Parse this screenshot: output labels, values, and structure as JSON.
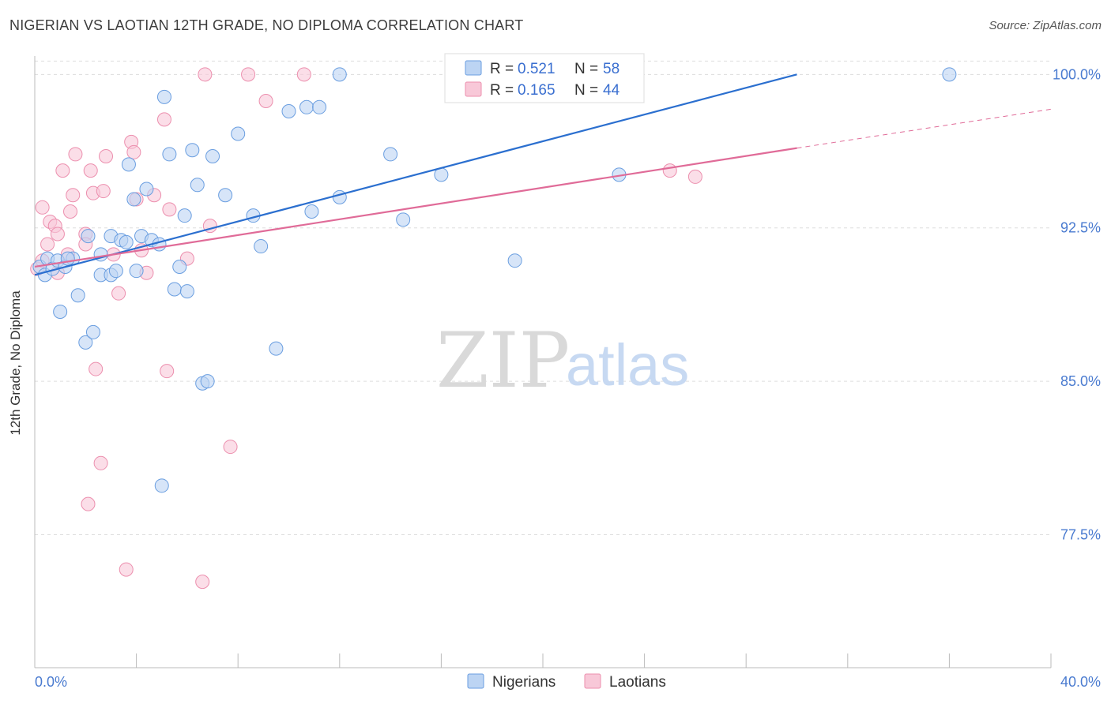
{
  "title": "NIGERIAN VS LAOTIAN 12TH GRADE, NO DIPLOMA CORRELATION CHART",
  "source": "Source: ZipAtlas.com",
  "watermark": {
    "zip": "ZIP",
    "atlas": "atlas"
  },
  "colors": {
    "nigerian_fill": "#bcd4f3",
    "nigerian_stroke": "#6a9ee0",
    "nigerian_line": "#2b6fcf",
    "laotian_fill": "#f8c8d8",
    "laotian_stroke": "#ec8fae",
    "laotian_line": "#e06b98",
    "grid": "#dddddd",
    "tick_label": "#4a7bd0"
  },
  "legend": {
    "rows": [
      {
        "r_label": "R = ",
        "r_value": "0.521",
        "n_label": "N = ",
        "n_value": "58"
      },
      {
        "r_label": "R = ",
        "r_value": "0.165",
        "n_label": "N = ",
        "n_value": "44"
      }
    ]
  },
  "chart_data": {
    "type": "scatter",
    "xlabel": "",
    "ylabel": "12th Grade, No Diploma",
    "xlim": [
      0,
      40
    ],
    "ylim": [
      71,
      100.9
    ],
    "x_tick_labels": [
      {
        "value": 0,
        "label": "0.0%"
      },
      {
        "value": 40,
        "label": "40.0%"
      }
    ],
    "y_tick_labels": [
      {
        "value": 100,
        "label": "100.0%"
      },
      {
        "value": 92.5,
        "label": "92.5%"
      },
      {
        "value": 85,
        "label": "85.0%"
      },
      {
        "value": 77.5,
        "label": "77.5%"
      }
    ],
    "legend_placement": "top-center",
    "series": [
      {
        "name": "Nigerians",
        "points": [
          [
            0.2,
            90.6
          ],
          [
            0.4,
            90.2
          ],
          [
            0.5,
            91.0
          ],
          [
            0.7,
            90.5
          ],
          [
            0.9,
            90.9
          ],
          [
            1.2,
            90.6
          ],
          [
            1.5,
            91.0
          ],
          [
            1.0,
            88.4
          ],
          [
            1.7,
            89.2
          ],
          [
            2.0,
            86.9
          ],
          [
            2.3,
            87.4
          ],
          [
            2.1,
            92.1
          ],
          [
            2.6,
            90.2
          ],
          [
            2.6,
            91.2
          ],
          [
            3.0,
            92.1
          ],
          [
            3.0,
            90.2
          ],
          [
            3.2,
            90.4
          ],
          [
            3.4,
            91.9
          ],
          [
            3.6,
            91.8
          ],
          [
            3.7,
            95.6
          ],
          [
            3.9,
            93.9
          ],
          [
            4.0,
            90.4
          ],
          [
            4.2,
            92.1
          ],
          [
            4.4,
            94.4
          ],
          [
            4.6,
            91.9
          ],
          [
            4.9,
            91.7
          ],
          [
            5.1,
            98.9
          ],
          [
            5.3,
            96.1
          ],
          [
            5.5,
            89.5
          ],
          [
            5.7,
            90.6
          ],
          [
            5.9,
            93.1
          ],
          [
            6.0,
            89.4
          ],
          [
            6.2,
            96.3
          ],
          [
            6.4,
            94.6
          ],
          [
            6.6,
            84.9
          ],
          [
            6.8,
            85.0
          ],
          [
            7.0,
            96.0
          ],
          [
            7.5,
            94.1
          ],
          [
            8.0,
            97.1
          ],
          [
            8.6,
            93.1
          ],
          [
            8.9,
            91.6
          ],
          [
            9.5,
            86.6
          ],
          [
            10.0,
            98.2
          ],
          [
            10.7,
            98.4
          ],
          [
            10.9,
            93.3
          ],
          [
            11.2,
            98.4
          ],
          [
            12.0,
            100.0
          ],
          [
            12.0,
            94.0
          ],
          [
            14.0,
            96.1
          ],
          [
            14.5,
            92.9
          ],
          [
            16.0,
            95.1
          ],
          [
            16.6,
            100.0
          ],
          [
            18.9,
            100.0
          ],
          [
            18.9,
            90.9
          ],
          [
            23.0,
            95.1
          ],
          [
            36.0,
            100.0
          ],
          [
            5.0,
            79.9
          ],
          [
            1.3,
            91.0
          ]
        ]
      },
      {
        "name": "Laotians",
        "points": [
          [
            0.1,
            90.5
          ],
          [
            0.3,
            90.9
          ],
          [
            0.3,
            93.5
          ],
          [
            0.5,
            91.7
          ],
          [
            0.6,
            92.8
          ],
          [
            0.8,
            92.6
          ],
          [
            0.9,
            90.3
          ],
          [
            0.9,
            92.2
          ],
          [
            1.1,
            95.3
          ],
          [
            1.3,
            91.2
          ],
          [
            1.4,
            93.3
          ],
          [
            1.5,
            94.1
          ],
          [
            1.6,
            96.1
          ],
          [
            2.0,
            92.2
          ],
          [
            2.0,
            91.7
          ],
          [
            2.2,
            95.3
          ],
          [
            2.3,
            94.2
          ],
          [
            2.4,
            85.6
          ],
          [
            2.6,
            81.0
          ],
          [
            2.7,
            94.3
          ],
          [
            2.8,
            96.0
          ],
          [
            2.1,
            79.0
          ],
          [
            3.1,
            91.2
          ],
          [
            3.3,
            89.3
          ],
          [
            3.6,
            75.8
          ],
          [
            3.8,
            96.7
          ],
          [
            3.9,
            96.2
          ],
          [
            4.0,
            93.9
          ],
          [
            4.2,
            91.4
          ],
          [
            4.4,
            90.3
          ],
          [
            4.7,
            94.1
          ],
          [
            5.1,
            97.8
          ],
          [
            5.2,
            85.5
          ],
          [
            5.3,
            93.4
          ],
          [
            6.0,
            91.0
          ],
          [
            6.6,
            75.2
          ],
          [
            6.7,
            100.0
          ],
          [
            6.9,
            92.6
          ],
          [
            7.7,
            81.8
          ],
          [
            8.4,
            100.0
          ],
          [
            9.1,
            98.7
          ],
          [
            10.6,
            100.0
          ],
          [
            25.0,
            95.3
          ],
          [
            26.0,
            95.0
          ]
        ]
      }
    ],
    "trend_lines": [
      {
        "series": "Nigerians",
        "x": [
          0,
          30
        ],
        "y": [
          90.2,
          100.0
        ]
      },
      {
        "series": "Laotians",
        "x": [
          0,
          30
        ],
        "y": [
          90.6,
          96.4
        ],
        "dashed_extension": {
          "x": [
            30,
            40
          ],
          "y": [
            96.4,
            98.3
          ]
        }
      }
    ]
  }
}
